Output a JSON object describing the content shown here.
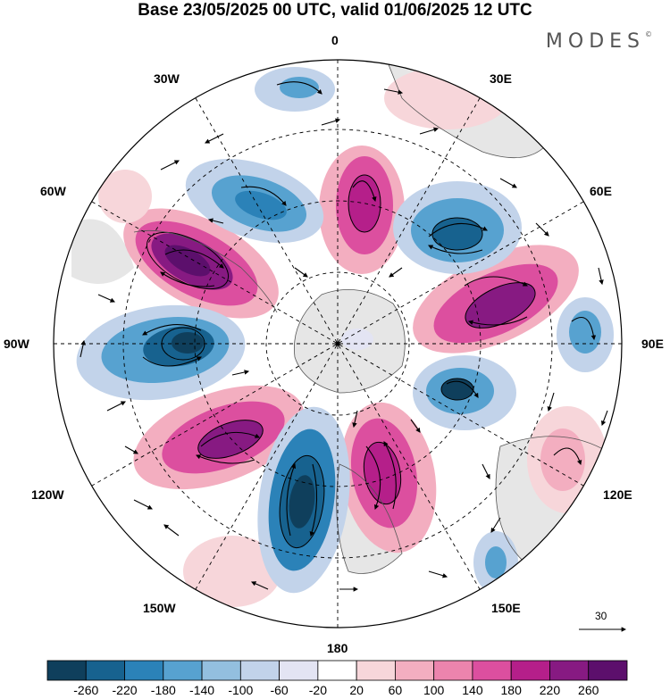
{
  "title": "Base 23/05/2025 00 UTC, valid 01/06/2025 12 UTC",
  "brand": "MODES",
  "brand_mark": "©",
  "longitude_labels": [
    "0",
    "30E",
    "60E",
    "90E",
    "120E",
    "150E",
    "180",
    "150W",
    "120W",
    "90W",
    "60W",
    "30W"
  ],
  "reference_vector": {
    "label": "30"
  },
  "colorbar": {
    "ticks": [
      "-260",
      "-220",
      "-180",
      "-140",
      "-100",
      "-60",
      "-20",
      "20",
      "60",
      "100",
      "140",
      "180",
      "220",
      "260"
    ],
    "colors": [
      "#0f3f5c",
      "#17628f",
      "#2b82b8",
      "#57a2d0",
      "#93bfdf",
      "#c2d3ea",
      "#e3e4f3",
      "#ffffff",
      "#f7d6da",
      "#f3aec0",
      "#ec84ad",
      "#dc4f9f",
      "#b51f8a",
      "#871a82",
      "#5c0f6c"
    ]
  }
}
